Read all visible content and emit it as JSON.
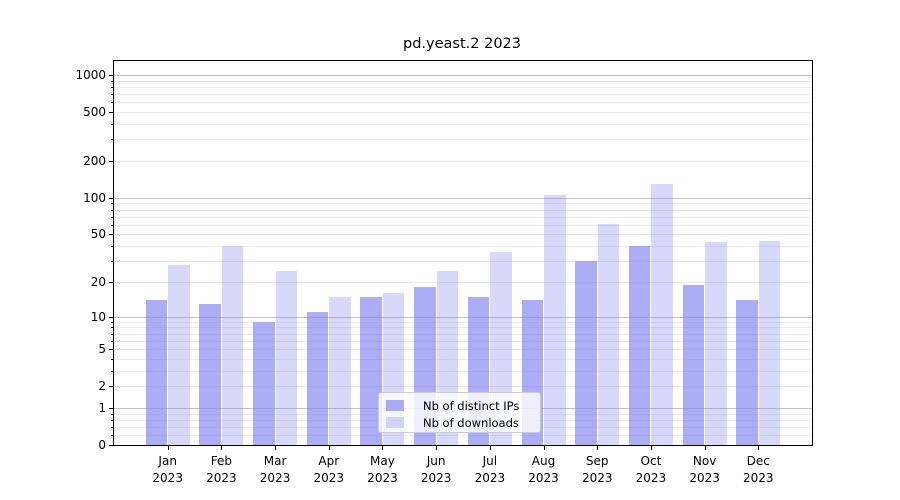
{
  "title": "pd.yeast.2 2023",
  "chart_data": {
    "type": "bar",
    "title": "pd.yeast.2 2023",
    "categories": [
      "Jan",
      "Feb",
      "Mar",
      "Apr",
      "May",
      "Jun",
      "Jul",
      "Aug",
      "Sep",
      "Oct",
      "Nov",
      "Dec"
    ],
    "year_label": "2023",
    "series": [
      {
        "name": "Nb of distinct IPs",
        "color": "#8282f2",
        "alpha": 0.66,
        "values": [
          14,
          13,
          9,
          11,
          15,
          18,
          15,
          14,
          30,
          40,
          19,
          14
        ]
      },
      {
        "name": "Nb of downloads",
        "color": "#8282f2",
        "alpha": 0.31,
        "values": [
          28,
          40,
          25,
          15,
          16,
          25,
          36,
          105,
          61,
          130,
          43,
          44
        ]
      }
    ],
    "xlabel": "",
    "ylabel": "",
    "yscale": "log1p",
    "ylim": [
      0,
      1300
    ],
    "y_ticks": [
      0,
      1,
      2,
      5,
      10,
      20,
      50,
      100,
      200,
      500,
      1000
    ],
    "y_major_gridlines": [
      1,
      10,
      100,
      1000
    ],
    "grid": true,
    "legend_position": "lower center"
  },
  "legend": {
    "items": [
      {
        "label": "Nb of distinct IPs"
      },
      {
        "label": "Nb of downloads"
      }
    ]
  },
  "colors": {
    "bar_base": "#8282f2",
    "bar_ip_rendered": "#ababfa",
    "bar_dl_rendered": "#d9d9fa",
    "major_grid": "#c2c2c2",
    "minor_grid": "#ebebeb",
    "spine": "#000000",
    "background": "#ffffff"
  }
}
